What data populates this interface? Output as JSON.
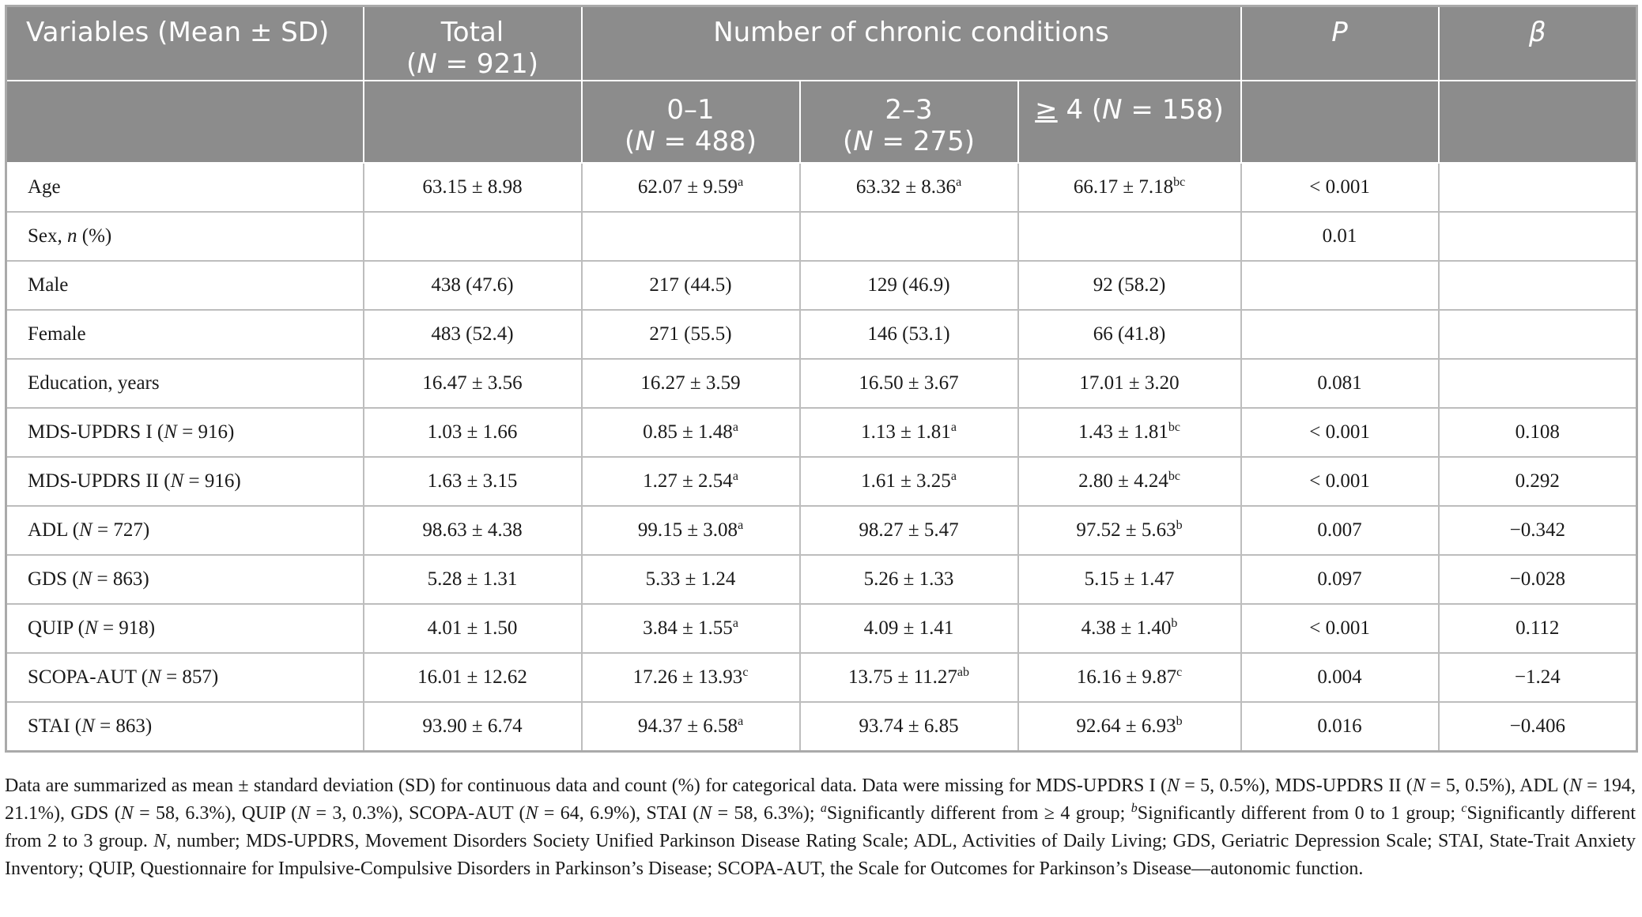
{
  "header": {
    "variables": "Variables (Mean ± SD)",
    "total_line1": "Total",
    "total_n_label": "N",
    "total_n_value": " = 921)",
    "conditions": "Number of chronic conditions",
    "p": "P",
    "beta": "β",
    "g1_line1": "0–1",
    "g1_n_value": " = 488)",
    "g2_line1": "2–3",
    "g2_n_value": " = 275)",
    "g3_ge": "≥",
    "g3_text": " 4 (",
    "g3_n_value": " = 158)"
  },
  "rows": [
    {
      "label": "Age",
      "label_suffix": "",
      "total": "63.15 ± 8.98",
      "g1": "62.07 ± 9.59",
      "g1_sup": "a",
      "g2": "63.32 ± 8.36",
      "g2_sup": "a",
      "g3": "66.17 ± 7.18",
      "g3_sup": "bc",
      "p": "< 0.001",
      "beta": ""
    },
    {
      "label": "Sex, ",
      "label_it": "n",
      "label_suffix": " (%)",
      "total": "",
      "g1": "",
      "g1_sup": "",
      "g2": "",
      "g2_sup": "",
      "g3": "",
      "g3_sup": "",
      "p": "0.01",
      "beta": ""
    },
    {
      "label": "Male",
      "label_suffix": "",
      "total": "438 (47.6)",
      "g1": "217 (44.5)",
      "g1_sup": "",
      "g2": "129 (46.9)",
      "g2_sup": "",
      "g3": "92 (58.2)",
      "g3_sup": "",
      "p": "",
      "beta": ""
    },
    {
      "label": "Female",
      "label_suffix": "",
      "total": "483 (52.4)",
      "g1": "271 (55.5)",
      "g1_sup": "",
      "g2": "146 (53.1)",
      "g2_sup": "",
      "g3": "66 (41.8)",
      "g3_sup": "",
      "p": "",
      "beta": ""
    },
    {
      "label": "Education, years",
      "label_suffix": "",
      "total": "16.47 ± 3.56",
      "g1": "16.27 ± 3.59",
      "g1_sup": "",
      "g2": "16.50 ± 3.67",
      "g2_sup": "",
      "g3": "17.01 ± 3.20",
      "g3_sup": "",
      "p": "0.081",
      "beta": ""
    },
    {
      "label": "MDS-UPDRS I (",
      "label_it": "N",
      "label_suffix": " = 916)",
      "total": "1.03 ± 1.66",
      "g1": "0.85 ± 1.48",
      "g1_sup": "a",
      "g2": "1.13 ± 1.81",
      "g2_sup": "a",
      "g3": "1.43 ± 1.81",
      "g3_sup": "bc",
      "p": "< 0.001",
      "beta": "0.108"
    },
    {
      "label": "MDS-UPDRS II (",
      "label_it": "N",
      "label_suffix": " = 916)",
      "total": "1.63 ± 3.15",
      "g1": "1.27 ± 2.54",
      "g1_sup": "a",
      "g2": "1.61 ± 3.25",
      "g2_sup": "a",
      "g3": "2.80 ± 4.24",
      "g3_sup": "bc",
      "p": "< 0.001",
      "beta": "0.292"
    },
    {
      "label": "ADL (",
      "label_it": "N",
      "label_suffix": " = 727)",
      "total": "98.63 ± 4.38",
      "g1": "99.15 ± 3.08",
      "g1_sup": "a",
      "g2": "98.27 ± 5.47",
      "g2_sup": "",
      "g3": "97.52 ± 5.63",
      "g3_sup": "b",
      "p": "0.007",
      "beta": "−0.342"
    },
    {
      "label": "GDS (",
      "label_it": "N",
      "label_suffix": " = 863)",
      "total": "5.28 ± 1.31",
      "g1": "5.33 ± 1.24",
      "g1_sup": "",
      "g2": "5.26 ± 1.33",
      "g2_sup": "",
      "g3": "5.15 ± 1.47",
      "g3_sup": "",
      "p": "0.097",
      "beta": "−0.028"
    },
    {
      "label": "QUIP (",
      "label_it": "N",
      "label_suffix": " = 918)",
      "total": "4.01 ± 1.50",
      "g1": "3.84 ± 1.55",
      "g1_sup": "a",
      "g2": "4.09 ± 1.41",
      "g2_sup": "",
      "g3": "4.38 ± 1.40",
      "g3_sup": "b",
      "p": "< 0.001",
      "beta": "0.112"
    },
    {
      "label": "SCOPA-AUT (",
      "label_it": "N",
      "label_suffix": " = 857)",
      "total": "16.01 ± 12.62",
      "g1": "17.26 ± 13.93",
      "g1_sup": "c",
      "g2": "13.75 ± 11.27",
      "g2_sup": "ab",
      "g3": "16.16 ± 9.87",
      "g3_sup": "c",
      "p": "0.004",
      "beta": "−1.24"
    },
    {
      "label": "STAI (",
      "label_it": "N",
      "label_suffix": " = 863)",
      "total": "93.90 ± 6.74",
      "g1": "94.37 ± 6.58",
      "g1_sup": "a",
      "g2": "93.74 ± 6.85",
      "g2_sup": "",
      "g3": "92.64 ± 6.93",
      "g3_sup": "b",
      "p": "0.016",
      "beta": "−0.406"
    }
  ],
  "footnote": {
    "t1": "Data are summarized as mean ± standard deviation (SD) for continuous data and count (%) for categorical data. Data were missing for MDS-UPDRS I (",
    "t2": " = 5, 0.5%), MDS-UPDRS II (",
    "t3": " = 5, 0.5%), ADL (",
    "t4": " = 194, 21.1%), GDS (",
    "t5": " = 58, 6.3%), QUIP (",
    "t6": " = 3, 0.3%), SCOPA-AUT (",
    "t7": " = 64, 6.9%), STAI (",
    "t8": " = 58, 6.3%); ",
    "sa": "a",
    "t9": "Significantly different from ≥ 4 group; ",
    "sb": "b",
    "t10": "Significantly different from 0 to 1 group; ",
    "sc": "c",
    "t11": "Significantly different from 2 to 3 group. ",
    "n_it": "N",
    "t12": ", number; MDS-UPDRS, Movement Disorders Society Unified Parkinson Disease Rating Scale; ADL, Activities of Daily Living; GDS, Geriatric Depression Scale; STAI, State-Trait Anxiety Inventory; QUIP, Questionnaire for Impulsive-Compulsive Disorders in Parkinson’s Disease; SCOPA-AUT, the Scale for Outcomes for Parkinson’s Disease—autonomic function."
  }
}
